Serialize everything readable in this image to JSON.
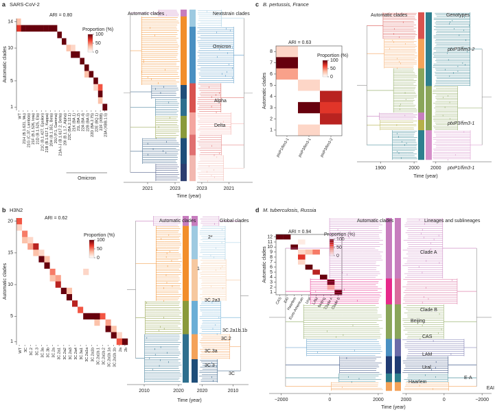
{
  "panels": [
    {
      "label": "a",
      "title": "SARS-CoV-2"
    },
    {
      "label": "b",
      "title": "H3N2"
    },
    {
      "label": "c",
      "title": "B. pertussis, France"
    },
    {
      "label": "d",
      "title": "M. tuberculosis, Russia"
    }
  ],
  "chart_data": [
    {
      "type": "heatmap",
      "annotation": "ARI = 0.80",
      "ylabel": "Automatic clades",
      "group_label": "Omicron",
      "categories": [
        "WT",
        "21H (B.1.621, Mu)",
        "21G (C.37, Lambda)",
        "21F (B.1.526, Iota)",
        "21D (B.1.525, Eta)",
        "21C (B.1.427, Epsilon)",
        "21B (B.1.617.1, Kappa)",
        "20H (B.1.351, Beta)",
        "20J (P.1, Gamma)",
        "21A-I-J (B.1.617.2, Delta)",
        "20I (B.1.1.7, Alpha)",
        "22C (BA.2.12.1)",
        "21K (BA.1)",
        "21L (BA.2)",
        "22A (BA.4)",
        "22B (BA.5)",
        "22D (BA.2.75)",
        "22E (BQ.1)",
        "22F (XBB)",
        "23A (XBB.1.5)"
      ],
      "y": [
        14,
        13,
        12,
        11,
        10,
        9,
        8,
        7,
        6,
        5,
        4,
        3,
        2,
        1
      ],
      "z": [
        [
          30,
          0,
          0,
          0,
          0,
          0,
          0,
          0,
          0,
          0,
          0,
          0,
          0,
          0,
          0,
          0,
          0,
          0,
          0,
          0
        ],
        [
          70,
          100,
          100,
          100,
          100,
          100,
          100,
          100,
          100,
          0,
          0,
          0,
          0,
          0,
          0,
          0,
          0,
          0,
          0,
          0
        ],
        [
          0,
          0,
          0,
          0,
          0,
          0,
          0,
          0,
          0,
          100,
          0,
          0,
          0,
          0,
          0,
          0,
          0,
          0,
          0,
          0
        ],
        [
          0,
          0,
          0,
          0,
          0,
          0,
          0,
          0,
          0,
          0,
          100,
          0,
          0,
          0,
          0,
          0,
          0,
          0,
          0,
          0
        ],
        [
          0,
          0,
          0,
          0,
          0,
          0,
          0,
          0,
          0,
          0,
          0,
          30,
          20,
          0,
          0,
          0,
          0,
          0,
          0,
          0
        ],
        [
          0,
          0,
          0,
          0,
          0,
          0,
          0,
          0,
          0,
          0,
          0,
          0,
          100,
          100,
          0,
          0,
          0,
          0,
          0,
          0
        ],
        [
          0,
          0,
          0,
          0,
          0,
          0,
          0,
          0,
          0,
          0,
          0,
          0,
          0,
          0,
          100,
          0,
          0,
          0,
          0,
          0
        ],
        [
          0,
          0,
          0,
          0,
          0,
          0,
          0,
          0,
          0,
          0,
          0,
          0,
          0,
          0,
          0,
          100,
          0,
          0,
          0,
          0
        ],
        [
          0,
          0,
          0,
          0,
          0,
          0,
          0,
          0,
          0,
          0,
          0,
          0,
          0,
          0,
          0,
          30,
          100,
          0,
          0,
          0
        ],
        [
          0,
          0,
          0,
          0,
          0,
          0,
          0,
          0,
          0,
          0,
          0,
          0,
          0,
          0,
          0,
          0,
          0,
          100,
          0,
          0
        ],
        [
          0,
          0,
          0,
          0,
          0,
          0,
          0,
          0,
          0,
          0,
          0,
          0,
          0,
          0,
          0,
          0,
          0,
          20,
          60,
          0
        ],
        [
          0,
          0,
          0,
          0,
          0,
          0,
          0,
          0,
          0,
          0,
          0,
          0,
          0,
          0,
          0,
          0,
          0,
          0,
          100,
          0
        ],
        [
          0,
          0,
          0,
          0,
          0,
          0,
          0,
          0,
          0,
          0,
          0,
          0,
          0,
          0,
          0,
          0,
          0,
          0,
          30,
          0
        ],
        [
          0,
          0,
          0,
          0,
          0,
          0,
          0,
          0,
          0,
          0,
          0,
          0,
          0,
          0,
          0,
          0,
          0,
          0,
          0,
          100
        ]
      ],
      "ylim": [
        0.5,
        14.5
      ],
      "yticks": [
        1,
        5,
        10,
        14
      ],
      "colormap": [
        "#ffffff",
        "#fcbba1",
        "#ef3b2c",
        "#67000d"
      ],
      "colorbar": {
        "title": "Proportion (%)",
        "lim": [
          0,
          100
        ],
        "ticks": [
          0,
          50,
          100
        ]
      }
    },
    {
      "type": "tree",
      "title_left": "Automatic clades",
      "title_right": "Nextstrain clades",
      "xlabel": "Time (year)",
      "xlim": [
        2019.25,
        2023.35
      ],
      "xticks": [
        2021,
        2023
      ],
      "xticks_right": [
        2023,
        2021
      ],
      "annotations": [
        "Omicron",
        "Alpha",
        "Delta"
      ]
    },
    {
      "type": "heatmap",
      "annotation": "ARI = 0.62",
      "ylabel": "Automatic clades",
      "categories": [
        "WT",
        "3C",
        "3C.2",
        "3C.3",
        "3C.3a",
        "3C.3b",
        "3C.2a",
        "3C.2a1",
        "3C.2a2",
        "3C.2a3",
        "3C.2a4",
        "3C.3a1",
        "3C.2a1a",
        "3C.2a1b",
        "3C.2a1b.1",
        "3C.2a1b.2",
        "3C.2a1b.1a",
        "3C.2a1b.1b",
        "2a",
        "2b"
      ],
      "y": [
        20,
        19,
        18,
        17,
        16,
        15,
        14,
        13,
        12,
        11,
        10,
        9,
        8,
        7,
        6,
        5,
        4,
        3,
        2,
        1
      ],
      "z": [
        [
          60,
          0,
          0,
          0,
          0,
          0,
          0,
          0,
          0,
          0,
          0,
          0,
          0,
          0,
          0,
          0,
          0,
          0,
          0,
          0
        ],
        [
          20,
          0,
          0,
          0,
          0,
          0,
          0,
          0,
          0,
          0,
          0,
          0,
          0,
          0,
          0,
          0,
          0,
          0,
          0,
          0
        ],
        [
          0,
          50,
          0,
          0,
          0,
          0,
          0,
          0,
          0,
          0,
          0,
          0,
          0,
          0,
          0,
          0,
          0,
          0,
          0,
          0
        ],
        [
          0,
          30,
          20,
          0,
          0,
          0,
          0,
          0,
          0,
          0,
          0,
          0,
          0,
          0,
          0,
          0,
          0,
          0,
          0,
          0
        ],
        [
          0,
          0,
          40,
          80,
          0,
          0,
          0,
          0,
          0,
          0,
          0,
          0,
          0,
          0,
          0,
          0,
          0,
          0,
          0,
          0
        ],
        [
          0,
          0,
          0,
          30,
          20,
          0,
          0,
          0,
          0,
          0,
          0,
          0,
          0,
          0,
          0,
          0,
          0,
          0,
          0,
          0
        ],
        [
          0,
          0,
          0,
          0,
          100,
          30,
          0,
          0,
          0,
          0,
          0,
          0,
          0,
          0,
          0,
          0,
          0,
          0,
          0,
          0
        ],
        [
          0,
          0,
          0,
          0,
          0,
          100,
          0,
          0,
          0,
          0,
          0,
          0,
          0,
          0,
          0,
          0,
          0,
          0,
          0,
          0
        ],
        [
          0,
          0,
          0,
          0,
          0,
          0,
          50,
          0,
          0,
          0,
          0,
          0,
          20,
          0,
          0,
          0,
          0,
          0,
          0,
          0
        ],
        [
          0,
          0,
          0,
          0,
          0,
          0,
          30,
          40,
          0,
          0,
          0,
          0,
          0,
          0,
          0,
          0,
          0,
          0,
          0,
          0
        ],
        [
          0,
          0,
          0,
          0,
          0,
          0,
          0,
          80,
          0,
          0,
          0,
          0,
          0,
          0,
          0,
          0,
          0,
          0,
          0,
          0
        ],
        [
          0,
          0,
          0,
          0,
          0,
          0,
          0,
          0,
          100,
          30,
          0,
          0,
          0,
          0,
          0,
          0,
          0,
          0,
          0,
          0
        ],
        [
          0,
          0,
          0,
          0,
          0,
          0,
          0,
          0,
          0,
          100,
          0,
          0,
          0,
          0,
          0,
          0,
          0,
          0,
          0,
          0
        ],
        [
          0,
          0,
          0,
          0,
          0,
          0,
          0,
          0,
          0,
          0,
          80,
          0,
          0,
          0,
          0,
          0,
          0,
          0,
          0,
          0
        ],
        [
          0,
          0,
          0,
          0,
          0,
          0,
          0,
          0,
          0,
          0,
          0,
          60,
          0,
          0,
          0,
          0,
          0,
          0,
          0,
          0
        ],
        [
          0,
          0,
          0,
          0,
          0,
          0,
          0,
          0,
          0,
          0,
          0,
          0,
          100,
          100,
          100,
          60,
          0,
          0,
          0,
          0
        ],
        [
          0,
          0,
          0,
          0,
          0,
          0,
          0,
          0,
          0,
          0,
          0,
          0,
          0,
          0,
          30,
          0,
          40,
          0,
          0,
          0
        ],
        [
          0,
          0,
          0,
          0,
          0,
          0,
          0,
          0,
          0,
          0,
          0,
          0,
          0,
          0,
          0,
          0,
          100,
          30,
          0,
          0
        ],
        [
          0,
          0,
          0,
          0,
          0,
          0,
          0,
          0,
          0,
          0,
          0,
          0,
          0,
          0,
          0,
          0,
          0,
          100,
          20,
          0
        ],
        [
          0,
          0,
          0,
          0,
          0,
          0,
          0,
          0,
          0,
          0,
          0,
          0,
          0,
          0,
          0,
          0,
          0,
          0,
          60,
          100
        ]
      ],
      "ylim": [
        0.5,
        20.5
      ],
      "yticks": [
        1,
        5,
        10,
        15,
        20
      ],
      "colormap": [
        "#ffffff",
        "#fcbba1",
        "#ef3b2c",
        "#67000d"
      ],
      "colorbar": {
        "title": "Proportion (%)",
        "lim": [
          0,
          100
        ],
        "ticks": [
          0,
          50,
          100
        ]
      }
    },
    {
      "type": "tree",
      "title_left": "Automatic clades",
      "title_right": "Global clades",
      "xlabel": "Time (year)",
      "xlim": [
        2005,
        2021
      ],
      "xticks": [
        2010,
        2020
      ],
      "xticks_right": [
        2020,
        2010
      ],
      "annotations": [
        "2*",
        "1",
        "3C.2a3",
        "3C.2a1b.1b",
        "3C.2",
        "3C.3a",
        "3C.3",
        "3C"
      ]
    },
    {
      "type": "heatmap",
      "annotation": "ARI = 0.63",
      "ylabel": "Automatic clades",
      "categories": [
        "ptxP1/fim3-1",
        "ptxP3/fim3-1",
        "ptxP3/fim3-2"
      ],
      "y": [
        8,
        7,
        6,
        5,
        4,
        3,
        2,
        1
      ],
      "z": [
        [
          20,
          0,
          0
        ],
        [
          100,
          0,
          0
        ],
        [
          40,
          0,
          0
        ],
        [
          0,
          20,
          0
        ],
        [
          0,
          0,
          80
        ],
        [
          0,
          100,
          70
        ],
        [
          0,
          0,
          80
        ],
        [
          0,
          20,
          0
        ]
      ],
      "ylim": [
        0.5,
        8.5
      ],
      "yticks": [
        1,
        2,
        3,
        4,
        5,
        6,
        7,
        8
      ],
      "colormap": [
        "#ffffff",
        "#fcbba1",
        "#ef3b2c",
        "#67000d"
      ],
      "colorbar": {
        "title": "Proportion (%)",
        "lim": [
          0,
          100
        ],
        "ticks": [
          0,
          50,
          100
        ]
      }
    },
    {
      "type": "tree",
      "title_left": "Automatic clades",
      "title_right": "Genotypes",
      "xlabel": "Time (year)",
      "xlim": [
        1830,
        2010
      ],
      "xticks": [
        1900,
        2000
      ],
      "xticks_right": [
        2000
      ],
      "annotations": [
        "ptxP3/fim3-2",
        "ptxP3/fim3-1",
        "ptxP1/fim3-1"
      ]
    },
    {
      "type": "heatmap",
      "annotation": "ARI = 0.94",
      "ylabel": "Automatic clades",
      "categories": [
        "CAS",
        "EAI",
        "Haarlem",
        "Euro-American",
        "Ural",
        "LAM",
        "Beijing",
        "Clade A",
        "Clade B"
      ],
      "y": [
        12,
        11,
        10,
        9,
        8,
        7,
        6,
        5,
        4,
        3,
        2,
        1
      ],
      "z": [
        [
          100,
          100,
          0,
          0,
          0,
          0,
          0,
          0,
          0
        ],
        [
          0,
          0,
          0,
          10,
          0,
          0,
          0,
          0,
          0
        ],
        [
          0,
          0,
          100,
          0,
          0,
          0,
          0,
          0,
          0
        ],
        [
          0,
          0,
          0,
          20,
          30,
          50,
          0,
          0,
          0
        ],
        [
          0,
          0,
          0,
          70,
          0,
          0,
          0,
          0,
          0
        ],
        [
          0,
          0,
          0,
          20,
          0,
          0,
          0,
          0,
          0
        ],
        [
          0,
          0,
          0,
          0,
          100,
          0,
          0,
          0,
          0
        ],
        [
          0,
          0,
          0,
          0,
          0,
          80,
          0,
          0,
          0
        ],
        [
          0,
          0,
          0,
          0,
          0,
          0,
          100,
          0,
          0
        ],
        [
          0,
          0,
          0,
          0,
          0,
          0,
          0,
          100,
          0
        ],
        [
          0,
          0,
          0,
          0,
          0,
          0,
          0,
          30,
          0
        ],
        [
          0,
          0,
          0,
          0,
          0,
          0,
          0,
          0,
          100
        ]
      ],
      "ylim": [
        0.5,
        12.5
      ],
      "yticks": [
        1,
        2,
        3,
        4,
        5,
        6,
        7,
        8,
        9,
        10,
        11,
        12
      ],
      "colormap": [
        "#ffffff",
        "#fcbba1",
        "#ef3b2c",
        "#67000d"
      ],
      "colorbar": {
        "title": "Proportion (%)",
        "lim": [
          0,
          100
        ],
        "ticks": [
          0,
          50,
          100
        ]
      }
    },
    {
      "type": "tree",
      "title_left": "Automatic clades",
      "title_right": "Lineages and sublineages",
      "xlabel": "Time (year)",
      "xlim": [
        -2500,
        2200
      ],
      "xticks": [
        {
          "value": -2000,
          "label": "−2000"
        },
        0,
        2000
      ],
      "xticks_right": [
        2000,
        0,
        {
          "value": -2000,
          "label": "−2000"
        }
      ],
      "annotations": [
        "Clade A",
        "Clade B",
        "Beijing",
        "CAS",
        "LAM",
        "Ural",
        "E-A",
        "Haarlem",
        "EAI"
      ]
    }
  ]
}
